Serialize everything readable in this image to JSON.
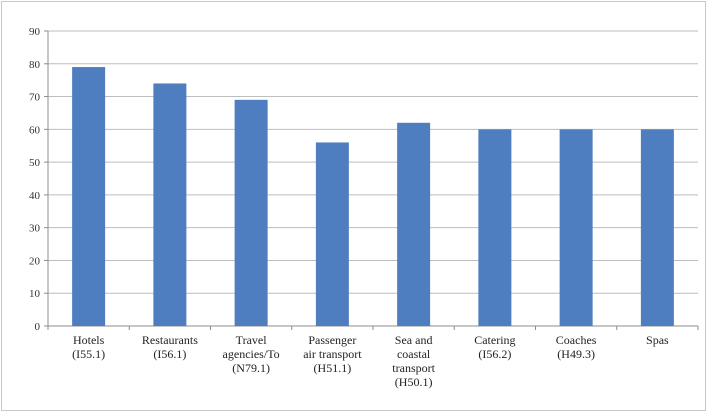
{
  "chart_data": {
    "type": "bar",
    "title": "",
    "xlabel": "",
    "ylabel": "",
    "ylim": [
      0,
      90
    ],
    "yticks": [
      0,
      10,
      20,
      30,
      40,
      50,
      60,
      70,
      80,
      90
    ],
    "grid": true,
    "legend": "none",
    "bar_color": "#4f7ec0",
    "categories": [
      [
        "Hotels",
        "(I55.1)"
      ],
      [
        "Restaurants",
        "(I56.1)"
      ],
      [
        "Travel",
        "agencies/To",
        "(N79.1)"
      ],
      [
        "Passenger",
        "air transport",
        "(H51.1)"
      ],
      [
        "Sea and",
        "coastal",
        "transport",
        "(H50.1)"
      ],
      [
        "Catering",
        "(I56.2)"
      ],
      [
        "Coaches",
        "(H49.3)"
      ],
      [
        "Spas"
      ]
    ],
    "values": [
      79,
      74,
      69,
      56,
      62,
      60,
      60,
      60
    ]
  }
}
